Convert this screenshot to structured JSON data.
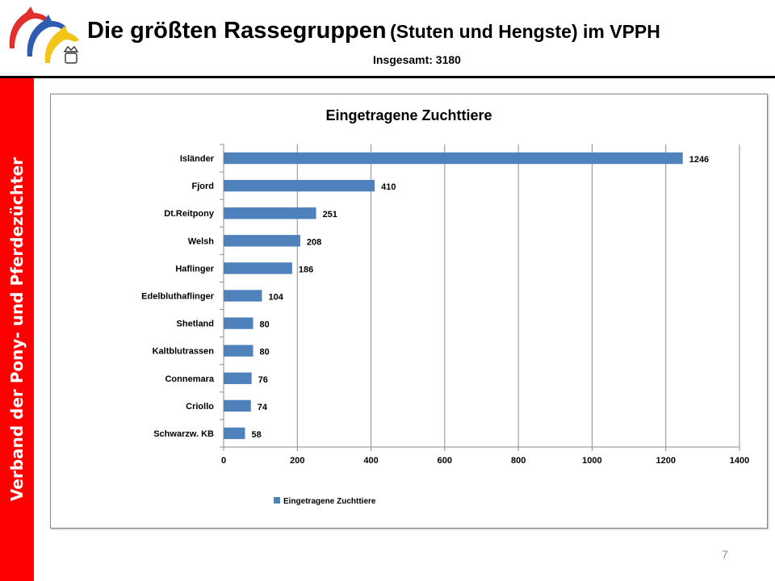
{
  "header": {
    "title_main": "Die größten Rassegruppen",
    "title_sub": "(Stuten und Hengste) im VPPH",
    "total": "Insgesamt: 3180"
  },
  "sidebar": {
    "text": "Verband der Pony- und Pferdezüchter"
  },
  "page_number": "7",
  "colors": {
    "bar": "#4f81bd",
    "sidebar": "#ff0000",
    "logo_red": "#e0302e",
    "logo_blue": "#2f5bb0",
    "logo_yellow": "#f2c418"
  },
  "chart_data": {
    "type": "bar",
    "orientation": "horizontal",
    "title": "Eingetragene Zuchttiere",
    "categories": [
      "Isländer",
      "Fjord",
      "Dt.Reitpony",
      "Welsh",
      "Haflinger",
      "Edelbluthaflinger",
      "Shetland",
      "Kaltblutrassen",
      "Connemara",
      "Criollo",
      "Schwarzw. KB"
    ],
    "series": [
      {
        "name": "Eingetragene Zuchttiere",
        "values": [
          1246,
          410,
          251,
          208,
          186,
          104,
          80,
          80,
          76,
          74,
          58
        ]
      }
    ],
    "data_labels": [
      "1246",
      "410",
      "251",
      "208",
      "186",
      "104",
      "80",
      "80",
      "76",
      "74",
      "58"
    ],
    "xlim": [
      0,
      1400
    ],
    "xticks": [
      "0",
      "200",
      "400",
      "600",
      "800",
      "1000",
      "1200",
      "1400"
    ],
    "xlabel": "",
    "ylabel": "",
    "grid": "vertical",
    "legend": "bottom"
  }
}
